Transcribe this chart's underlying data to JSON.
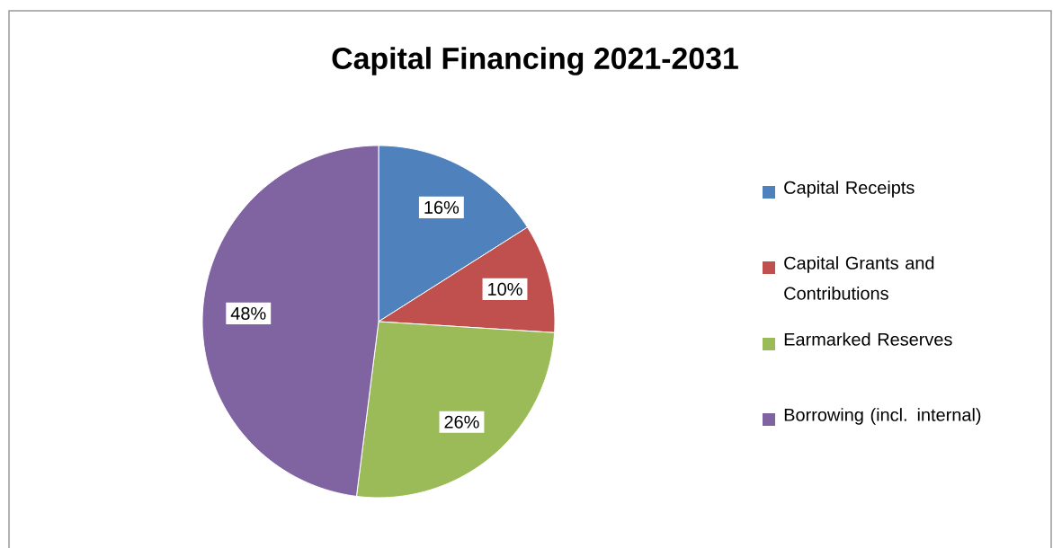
{
  "chart_data": {
    "type": "pie",
    "title": "Capital Financing 2021-2031",
    "categories": [
      "Capital Receipts",
      "Capital Grants and Contributions",
      "Earmarked Reserves",
      "Borrowing (incl. internal)"
    ],
    "values": [
      16,
      10,
      26,
      48
    ],
    "colors": [
      "#4f81bd",
      "#c0504d",
      "#9bbb59",
      "#8064a2"
    ],
    "value_labels": [
      "16%",
      "10%",
      "26%",
      "48%"
    ],
    "legend": "right"
  }
}
